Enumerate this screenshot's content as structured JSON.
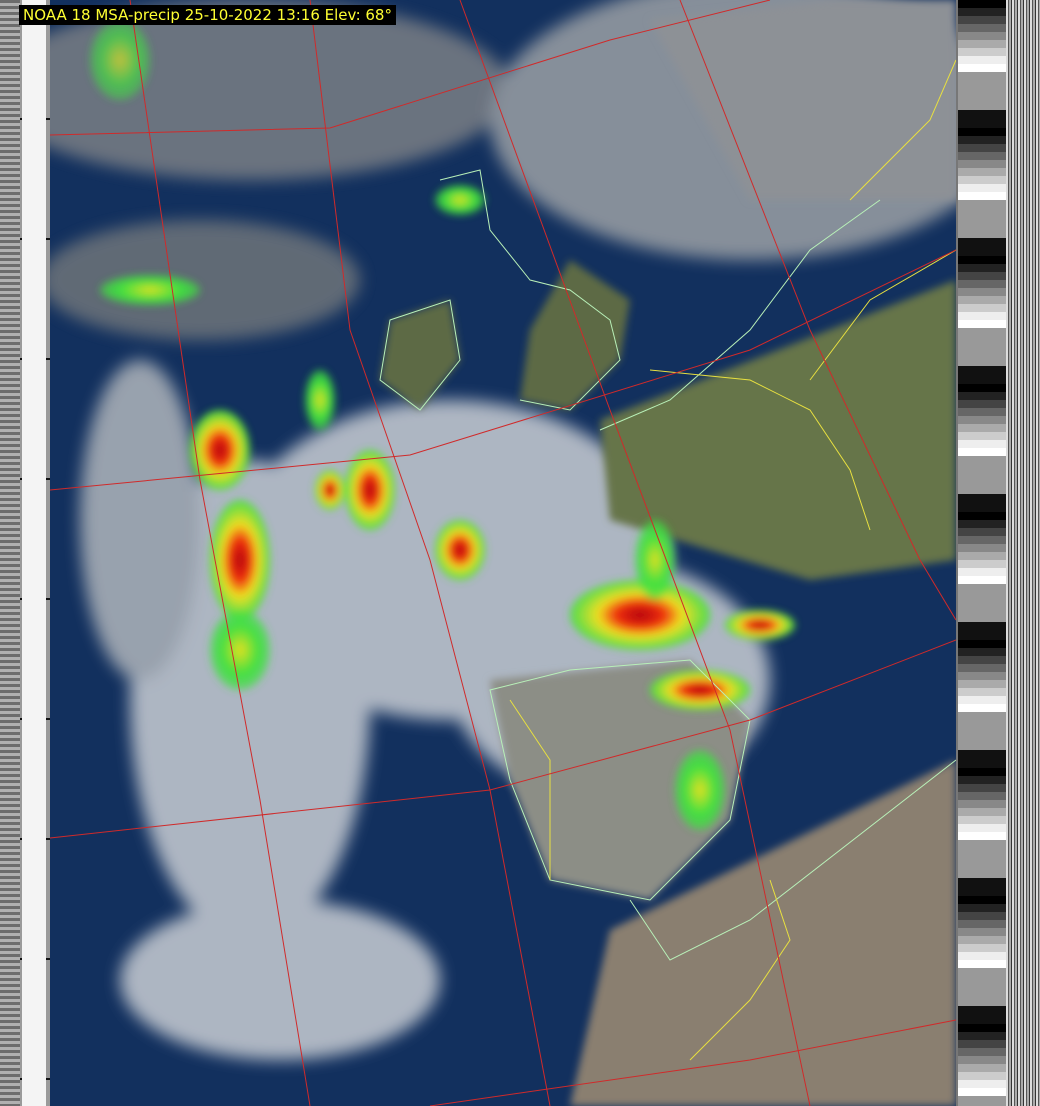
{
  "title": "NOAA 18 MSA-precip 25-10-2022 13:16 Elev: 68°",
  "colors": {
    "ocean": "#12305e",
    "cloud": "#d8dde2",
    "land": "#6b7a4a",
    "desert": "#8a7f70",
    "graticule": "#d02a2a",
    "borders": "#e8e040",
    "coastlines": "#b8f0b8",
    "precip_light": "#40e040",
    "precip_medium": "#f0e020",
    "precip_heavy": "#c00010",
    "title_text": "#ffff33"
  },
  "image_type": "satellite false-color precipitation composite with map overlay"
}
